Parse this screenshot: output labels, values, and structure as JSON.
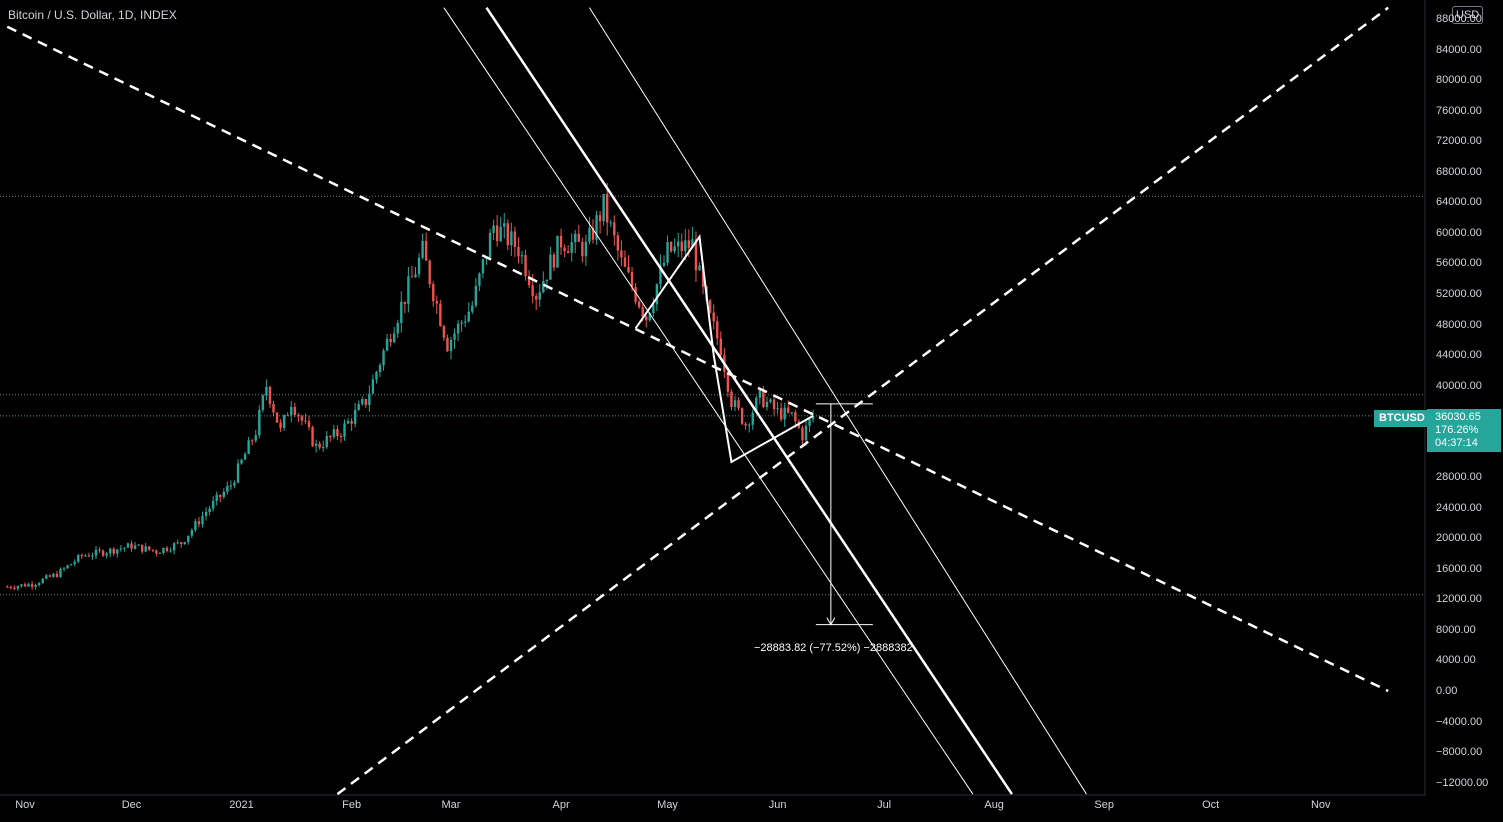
{
  "header": {
    "title": "Bitcoin / U.S. Dollar, 1D, INDEX"
  },
  "currency_button": "USD",
  "last_price": {
    "symbol": "BTCUSD",
    "price": "36030.65",
    "change_pct": "176.26%",
    "countdown": "04:37:14"
  },
  "measure_label": "−28883.82 (−77.52%) −2888382",
  "colors": {
    "up": "#26a69a",
    "down": "#ef5350",
    "background": "#000000",
    "drawing": "#ffffff",
    "tag": "#26a69a"
  },
  "chart_data": {
    "type": "candlestick",
    "title": "Bitcoin / U.S. Dollar, 1D, INDEX",
    "xlabel": "",
    "ylabel": "",
    "x_ticks": [
      "Nov",
      "Dec",
      "2021",
      "Feb",
      "Mar",
      "Apr",
      "May",
      "Jun",
      "Jul",
      "Aug",
      "Sep",
      "Oct",
      "Nov"
    ],
    "y_ticks": [
      "88000.00",
      "84000.00",
      "80000.00",
      "76000.00",
      "72000.00",
      "68000.00",
      "64000.00",
      "60000.00",
      "56000.00",
      "52000.00",
      "48000.00",
      "44000.00",
      "40000.00",
      "36030.65",
      "28000.00",
      "24000.00",
      "20000.00",
      "16000.00",
      "12000.00",
      "8000.00",
      "4000.00",
      "0.00",
      "-4000.00",
      "-8000.00",
      "-12000.00"
    ],
    "ylim": [
      -13500,
      89500
    ],
    "grid": false,
    "horizontal_levels": [
      64800,
      38800,
      12600
    ],
    "price_series_close": [
      [
        "2020-10-27",
        13650
      ],
      [
        "2020-11-03",
        14000
      ],
      [
        "2020-11-10",
        15300
      ],
      [
        "2020-11-17",
        17700
      ],
      [
        "2020-11-24",
        18300
      ],
      [
        "2020-12-01",
        19000
      ],
      [
        "2020-12-08",
        18300
      ],
      [
        "2020-12-15",
        19400
      ],
      [
        "2020-12-22",
        23500
      ],
      [
        "2020-12-29",
        27000
      ],
      [
        "2021-01-05",
        34000
      ],
      [
        "2021-01-08",
        40000
      ],
      [
        "2021-01-12",
        34000
      ],
      [
        "2021-01-15",
        38000
      ],
      [
        "2021-01-22",
        32000
      ],
      [
        "2021-01-29",
        34000
      ],
      [
        "2021-02-05",
        38000
      ],
      [
        "2021-02-12",
        47000
      ],
      [
        "2021-02-21",
        57500
      ],
      [
        "2021-02-28",
        45500
      ],
      [
        "2021-03-07",
        50500
      ],
      [
        "2021-03-13",
        61000
      ],
      [
        "2021-03-20",
        58000
      ],
      [
        "2021-03-25",
        52000
      ],
      [
        "2021-04-01",
        59000
      ],
      [
        "2021-04-08",
        58000
      ],
      [
        "2021-04-13",
        63500
      ],
      [
        "2021-04-18",
        56000
      ],
      [
        "2021-04-25",
        49000
      ],
      [
        "2021-05-01",
        57500
      ],
      [
        "2021-05-08",
        58500
      ],
      [
        "2021-05-12",
        50000
      ],
      [
        "2021-05-16",
        45000
      ],
      [
        "2021-05-19",
        38000
      ],
      [
        "2021-05-23",
        35000
      ],
      [
        "2021-05-27",
        38500
      ],
      [
        "2021-06-01",
        36500
      ],
      [
        "2021-06-05",
        36000
      ],
      [
        "2021-06-08",
        33500
      ],
      [
        "2021-06-11",
        36030.65
      ]
    ],
    "trendlines": [
      {
        "name": "descending dashed",
        "from": [
          "2020-10-27",
          87000
        ],
        "to": [
          "2021-11-20",
          0
        ]
      },
      {
        "name": "ascending dashed",
        "from": [
          "2021-01-28",
          -13500
        ],
        "to": [
          "2021-11-20",
          89500
        ]
      },
      {
        "name": "channel middle",
        "from": [
          "2021-03-11",
          89500
        ],
        "to": [
          "2021-08-06",
          -13500
        ]
      },
      {
        "name": "channel upper",
        "from": [
          "2021-04-09",
          89500
        ],
        "to": [
          "2021-08-27",
          -13500
        ]
      },
      {
        "name": "channel lower",
        "from": [
          "2021-02-27",
          89500
        ],
        "to": [
          "2021-07-26",
          -13500
        ]
      }
    ],
    "measure": {
      "from": [
        "2021-06-16",
        37600
      ],
      "to": [
        "2021-06-16",
        8700
      ],
      "delta": -28883.82,
      "pct": -77.52
    }
  }
}
